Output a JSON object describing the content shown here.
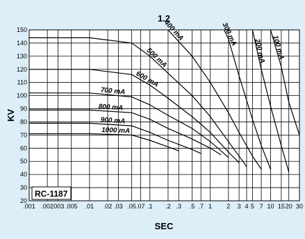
{
  "chart_data": {
    "type": "line",
    "title": "1.2",
    "xlabel": "SEC",
    "ylabel": "KV",
    "x_scale": "log",
    "xlim": [
      0.001,
      30
    ],
    "ylim": [
      20,
      150
    ],
    "grid": true,
    "x_ticks": [
      ".001",
      ".002",
      ".003",
      ".005",
      ".01",
      ".02",
      ".03",
      ".05",
      ".07",
      ".1",
      ".2",
      ".3",
      ".5",
      ".7",
      "1",
      "2",
      "3",
      "4",
      "5",
      "7",
      "10",
      "15",
      "20",
      "30"
    ],
    "x_tick_values": [
      0.001,
      0.002,
      0.003,
      0.005,
      0.01,
      0.02,
      0.03,
      0.05,
      0.07,
      0.1,
      0.2,
      0.3,
      0.5,
      0.7,
      1,
      2,
      3,
      4,
      5,
      7,
      10,
      15,
      20,
      30
    ],
    "y_ticks": [
      "20",
      "30",
      "40",
      "50",
      "60",
      "70",
      "80",
      "90",
      "100",
      "110",
      "120",
      "130",
      "140",
      "150"
    ],
    "y_tick_values": [
      20,
      30,
      40,
      50,
      60,
      70,
      80,
      90,
      100,
      110,
      120,
      130,
      140,
      150
    ],
    "annotation": "RC-1187",
    "series": [
      {
        "name": "1000 mA",
        "x": [
          0.001,
          0.01,
          0.05,
          0.1,
          0.2,
          0.3
        ],
        "y": [
          71,
          71,
          70,
          66,
          61,
          58
        ]
      },
      {
        "name": "900 mA",
        "x": [
          0.001,
          0.01,
          0.05,
          0.1,
          0.2,
          0.5,
          0.7
        ],
        "y": [
          79,
          79,
          77,
          72,
          66,
          59,
          56
        ]
      },
      {
        "name": "800 mA",
        "x": [
          0.001,
          0.01,
          0.05,
          0.1,
          0.2,
          0.5,
          1,
          1.5
        ],
        "y": [
          89,
          89,
          87,
          82,
          75,
          67,
          60,
          55
        ]
      },
      {
        "name": "700 mA",
        "x": [
          0.001,
          0.01,
          0.05,
          0.1,
          0.2,
          0.5,
          1,
          2
        ],
        "y": [
          102,
          102,
          99,
          93,
          85,
          75,
          65,
          53
        ]
      },
      {
        "name": "600 mA",
        "x": [
          0.001,
          0.01,
          0.05,
          0.1,
          0.2,
          0.5,
          1,
          2,
          3
        ],
        "y": [
          120,
          120,
          116,
          108,
          98,
          84,
          72,
          57,
          49
        ]
      },
      {
        "name": "500 mA",
        "x": [
          0.001,
          0.01,
          0.05,
          0.1,
          0.2,
          0.5,
          1,
          2,
          3,
          4
        ],
        "y": [
          144,
          144,
          140,
          130,
          117,
          100,
          84,
          65,
          54,
          46
        ]
      },
      {
        "name": "400 mA",
        "x": [
          0.2,
          0.5,
          1,
          2,
          3,
          5,
          7
        ],
        "y": [
          150,
          130,
          110,
          87,
          72,
          54,
          44
        ]
      },
      {
        "name": "300 mA",
        "x": [
          1.7,
          2,
          3,
          5,
          7,
          10
        ],
        "y": [
          150,
          143,
          115,
          82,
          62,
          44
        ]
      },
      {
        "name": "200 mA",
        "x": [
          5,
          7,
          10,
          15,
          20
        ],
        "y": [
          150,
          120,
          92,
          62,
          42
        ]
      },
      {
        "name": "100 mA",
        "x": [
          10,
          15,
          20,
          30
        ],
        "y": [
          150,
          122,
          95,
          70
        ]
      }
    ]
  }
}
